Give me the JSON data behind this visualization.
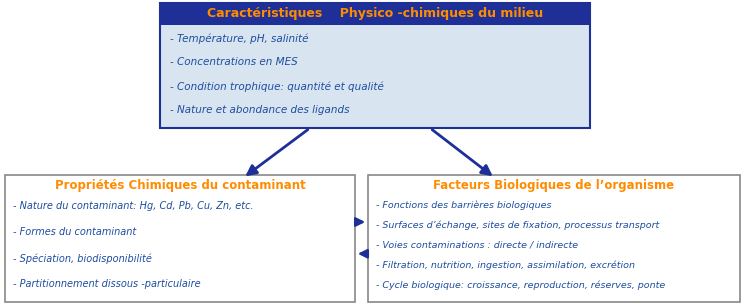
{
  "top_box": {
    "title": "Caractéristiques    Physico -chimiques du milieu",
    "title_color": "#FF8C00",
    "box_color": "#1E2F97",
    "fill_color": "#D8E4F0",
    "items": [
      "Température, pH, salinité",
      "Concentrations en MES",
      "Condition trophique: quantité et qualité",
      "Nature et abondance des ligands"
    ],
    "item_color": "#1E4DA0"
  },
  "left_box": {
    "title": "Propriétés Chimiques du contaminant",
    "title_color": "#FF8C00",
    "box_color": "#888888",
    "fill_color": "#FFFFFF",
    "items": [
      "Nature du contaminant: Hg, Cd, Pb, Cu, Zn, etc.",
      "Formes du contaminant",
      "Spéciation, biodisponibilité",
      "Partitionnement dissous -particulaire"
    ],
    "item_color": "#1E4DA0"
  },
  "right_box": {
    "title": "Facteurs Biologiques de l’organisme",
    "title_color": "#FF8C00",
    "box_color": "#888888",
    "fill_color": "#FFFFFF",
    "items": [
      "Fonctions des barrières biologiques",
      "Surfaces d’échange, sites de fixation, processus transport",
      "Voies contaminations : directe / indirecte",
      "Filtration, nutrition, ingestion, assimilation, excrétion",
      "Cycle biologique: croissance, reproduction, réserves, ponte"
    ],
    "item_color": "#1E4DA0"
  },
  "arrow_color": "#1E2F97",
  "background_color": "#FFFFFF",
  "fig_width": 7.44,
  "fig_height": 3.04,
  "dpi": 100
}
